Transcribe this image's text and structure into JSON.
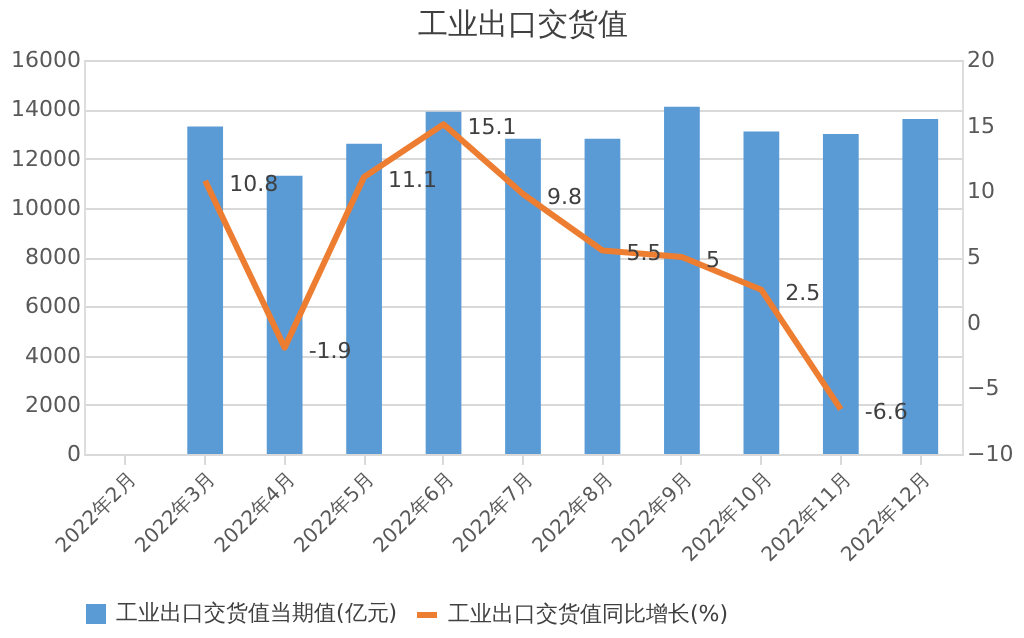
{
  "chart_data": {
    "type": "bar",
    "title": "工业出口交货值",
    "categories": [
      "2022年2月",
      "2022年3月",
      "2022年4月",
      "2022年5月",
      "2022年6月",
      "2022年7月",
      "2022年8月",
      "2022年9月",
      "2022年10月",
      "2022年11月",
      "2022年12月"
    ],
    "series": [
      {
        "name": "工业出口交货值当期值(亿元)",
        "color": "#5b9bd5",
        "values": [
          null,
          13300,
          11300,
          12600,
          13900,
          12800,
          12800,
          14100,
          13100,
          13000,
          13600
        ]
      },
      {
        "name": "工业出口交货值同比增长(%)",
        "color": "#ed7d31",
        "type": "line",
        "axis": "y2",
        "data_labels": true,
        "values": [
          null,
          10.8,
          -1.9,
          11.1,
          15.1,
          9.8,
          5.5,
          5,
          2.5,
          -6.6,
          null
        ]
      }
    ],
    "ylim": [
      0,
      16000
    ],
    "yticks": [
      0,
      2000,
      4000,
      6000,
      8000,
      10000,
      12000,
      14000,
      16000
    ],
    "y2lim": [
      -10,
      20
    ],
    "y2ticks": [
      -10,
      -5,
      0,
      5,
      10,
      15,
      20
    ],
    "grid": "y",
    "legend": "bottom",
    "marker": "none"
  }
}
